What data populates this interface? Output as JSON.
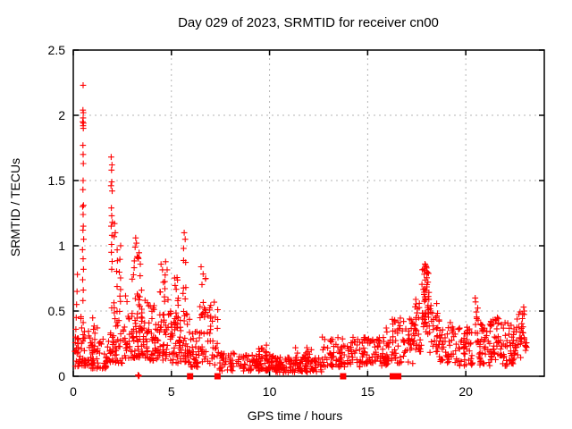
{
  "chart_data": {
    "type": "scatter",
    "title": "Day 029 of 2023, SRMTID for receiver cn00",
    "xlabel": "GPS time / hours",
    "ylabel": "SRMTID / TECUs",
    "xlim": [
      0,
      24
    ],
    "ylim": [
      0,
      2.5
    ],
    "xticks": [
      {
        "label": "0",
        "value": 0
      },
      {
        "label": "5",
        "value": 5
      },
      {
        "label": "10",
        "value": 10
      },
      {
        "label": "15",
        "value": 15
      },
      {
        "label": "20",
        "value": 20
      }
    ],
    "yticks": [
      {
        "label": "0",
        "value": 0
      },
      {
        "label": "0.5",
        "value": 0.5
      },
      {
        "label": "1",
        "value": 1
      },
      {
        "label": "1.5",
        "value": 1.5
      },
      {
        "label": "2",
        "value": 2
      },
      {
        "label": "2.5",
        "value": 2.5
      }
    ],
    "grid": true,
    "legend": "none",
    "marker_color": "#ff0000",
    "grid_color": "#b5b5b5",
    "axis_color": "#000000",
    "series": [
      {
        "name": "SRMTID",
        "marker": "plus",
        "color": "#ff0000",
        "prng_seed": 20230129,
        "peak_points": [
          [
            0.5,
            2.23
          ],
          [
            0.49,
            2.04
          ],
          [
            0.51,
            2.02
          ],
          [
            0.5,
            1.98
          ],
          [
            0.48,
            1.95
          ],
          [
            0.52,
            1.94
          ],
          [
            0.5,
            1.92
          ],
          [
            0.51,
            1.9
          ],
          [
            0.49,
            1.77
          ],
          [
            0.5,
            1.7
          ],
          [
            0.51,
            1.63
          ],
          [
            0.5,
            1.5
          ],
          [
            0.49,
            1.43
          ],
          [
            0.52,
            1.31
          ],
          [
            0.48,
            1.3
          ],
          [
            0.5,
            1.24
          ],
          [
            0.51,
            1.15
          ],
          [
            0.49,
            1.12
          ],
          [
            0.53,
            1.05
          ],
          [
            0.47,
            0.97
          ],
          [
            0.5,
            0.9
          ],
          [
            0.52,
            0.82
          ],
          [
            0.48,
            0.74
          ],
          [
            0.51,
            0.66
          ],
          [
            0.49,
            0.58
          ],
          [
            0.11,
            0.3
          ],
          [
            0.13,
            0.36
          ],
          [
            0.15,
            0.45
          ],
          [
            0.17,
            0.55
          ],
          [
            0.19,
            0.65
          ],
          [
            0.21,
            0.78
          ],
          [
            1.93,
            1.68
          ],
          [
            1.97,
            1.62
          ],
          [
            1.95,
            1.58
          ],
          [
            1.96,
            1.49
          ],
          [
            1.92,
            1.46
          ],
          [
            1.98,
            1.42
          ],
          [
            1.94,
            1.29
          ],
          [
            1.96,
            1.23
          ],
          [
            1.99,
            1.18
          ],
          [
            1.93,
            1.15
          ],
          [
            1.97,
            1.08
          ],
          [
            1.95,
            1.01
          ],
          [
            1.94,
            0.95
          ],
          [
            1.98,
            0.88
          ],
          [
            1.96,
            0.82
          ],
          [
            2.1,
            1.17
          ],
          [
            2.14,
            1.1
          ],
          [
            2.08,
            1.07
          ],
          [
            3.18,
            1.06
          ],
          [
            3.22,
            1.02
          ],
          [
            3.15,
            0.99
          ],
          [
            5.65,
            1.1
          ],
          [
            5.7,
            1.05
          ],
          [
            5.62,
            0.98
          ],
          [
            17.92,
            0.86
          ],
          [
            17.95,
            0.85
          ],
          [
            17.98,
            0.84
          ],
          [
            18.0,
            0.83
          ],
          [
            17.9,
            0.81
          ],
          [
            18.02,
            0.8
          ],
          [
            20.48,
            0.6
          ],
          [
            20.5,
            0.57
          ],
          [
            15.95,
            0.37
          ],
          [
            15.98,
            0.34
          ],
          [
            22.9,
            0.48
          ],
          [
            22.95,
            0.53
          ],
          [
            22.98,
            0.5
          ],
          [
            3.3,
            0.01
          ],
          [
            3.35,
            0.005
          ],
          [
            3.32,
            0.0
          ]
        ],
        "cluster_model": [
          {
            "x0": 0.05,
            "x1": 0.35,
            "n": 22,
            "y0": 0.07,
            "y1": 0.3,
            "skew": 1.3
          },
          {
            "x0": 0.35,
            "x1": 0.8,
            "n": 30,
            "y0": 0.08,
            "y1": 0.48,
            "skew": 1.6
          },
          {
            "x0": 0.8,
            "x1": 1.75,
            "n": 55,
            "y0": 0.06,
            "y1": 0.3,
            "skew": 1.7
          },
          {
            "x0": 0.95,
            "x1": 1.3,
            "n": 5,
            "y0": 0.32,
            "y1": 0.52,
            "skew": 1.0
          },
          {
            "x0": 1.75,
            "x1": 2.6,
            "n": 55,
            "y0": 0.1,
            "y1": 0.58,
            "skew": 1.6
          },
          {
            "x0": 2.2,
            "x1": 2.55,
            "n": 10,
            "y0": 0.6,
            "y1": 1.1,
            "skew": 1.1
          },
          {
            "x0": 2.6,
            "x1": 3.8,
            "n": 95,
            "y0": 0.14,
            "y1": 0.62,
            "skew": 1.5
          },
          {
            "x0": 3.0,
            "x1": 3.55,
            "n": 14,
            "y0": 0.6,
            "y1": 1.0,
            "skew": 1.1
          },
          {
            "x0": 3.8,
            "x1": 5.0,
            "n": 85,
            "y0": 0.12,
            "y1": 0.55,
            "skew": 1.5
          },
          {
            "x0": 4.3,
            "x1": 4.85,
            "n": 13,
            "y0": 0.55,
            "y1": 0.92,
            "skew": 1.1
          },
          {
            "x0": 5.0,
            "x1": 5.45,
            "n": 35,
            "y0": 0.1,
            "y1": 0.5,
            "skew": 1.4
          },
          {
            "x0": 5.1,
            "x1": 5.35,
            "n": 8,
            "y0": 0.5,
            "y1": 0.88,
            "skew": 1.0
          },
          {
            "x0": 5.45,
            "x1": 5.95,
            "n": 35,
            "y0": 0.1,
            "y1": 0.48,
            "skew": 1.4
          },
          {
            "x0": 5.58,
            "x1": 5.8,
            "n": 7,
            "y0": 0.48,
            "y1": 0.95,
            "skew": 1.0
          },
          {
            "x0": 5.95,
            "x1": 6.35,
            "n": 25,
            "y0": 0.07,
            "y1": 0.35,
            "skew": 1.4
          },
          {
            "x0": 6.35,
            "x1": 6.95,
            "n": 32,
            "y0": 0.1,
            "y1": 0.55,
            "skew": 1.3
          },
          {
            "x0": 6.45,
            "x1": 6.75,
            "n": 6,
            "y0": 0.55,
            "y1": 0.84,
            "skew": 1.0
          },
          {
            "x0": 6.95,
            "x1": 7.45,
            "n": 26,
            "y0": 0.08,
            "y1": 0.6,
            "skew": 1.3
          },
          {
            "x0": 7.45,
            "x1": 8.35,
            "n": 38,
            "y0": 0.04,
            "y1": 0.18,
            "skew": 1.2
          },
          {
            "x0": 8.35,
            "x1": 10.25,
            "n": 95,
            "y0": 0.04,
            "y1": 0.17,
            "skew": 1.2
          },
          {
            "x0": 9.45,
            "x1": 9.85,
            "n": 10,
            "y0": 0.15,
            "y1": 0.24,
            "skew": 1.0
          },
          {
            "x0": 10.25,
            "x1": 12.65,
            "n": 135,
            "y0": 0.03,
            "y1": 0.15,
            "skew": 1.2
          },
          {
            "x0": 11.3,
            "x1": 12.3,
            "n": 8,
            "y0": 0.15,
            "y1": 0.22,
            "skew": 1.0
          },
          {
            "x0": 12.65,
            "x1": 14.65,
            "n": 95,
            "y0": 0.07,
            "y1": 0.3,
            "skew": 1.3
          },
          {
            "x0": 14.65,
            "x1": 16.25,
            "n": 85,
            "y0": 0.08,
            "y1": 0.3,
            "skew": 1.3
          },
          {
            "x0": 16.25,
            "x1": 17.35,
            "n": 62,
            "y0": 0.09,
            "y1": 0.45,
            "skew": 1.3
          },
          {
            "x0": 17.35,
            "x1": 17.75,
            "n": 30,
            "y0": 0.18,
            "y1": 0.6,
            "skew": 1.2
          },
          {
            "x0": 17.75,
            "x1": 18.15,
            "n": 46,
            "y0": 0.32,
            "y1": 0.85,
            "skew": 0.9
          },
          {
            "x0": 18.15,
            "x1": 18.65,
            "n": 30,
            "y0": 0.18,
            "y1": 0.58,
            "skew": 1.2
          },
          {
            "x0": 18.65,
            "x1": 19.65,
            "n": 52,
            "y0": 0.1,
            "y1": 0.42,
            "skew": 1.3
          },
          {
            "x0": 19.65,
            "x1": 20.35,
            "n": 45,
            "y0": 0.08,
            "y1": 0.38,
            "skew": 1.3
          },
          {
            "x0": 20.35,
            "x1": 20.65,
            "n": 12,
            "y0": 0.25,
            "y1": 0.55,
            "skew": 1.0
          },
          {
            "x0": 20.65,
            "x1": 21.25,
            "n": 42,
            "y0": 0.08,
            "y1": 0.4,
            "skew": 1.3
          },
          {
            "x0": 21.25,
            "x1": 21.85,
            "n": 40,
            "y0": 0.1,
            "y1": 0.46,
            "skew": 1.2
          },
          {
            "x0": 21.85,
            "x1": 22.45,
            "n": 40,
            "y0": 0.08,
            "y1": 0.42,
            "skew": 1.2
          },
          {
            "x0": 22.45,
            "x1": 23.1,
            "n": 42,
            "y0": 0.12,
            "y1": 0.5,
            "skew": 1.0
          }
        ]
      },
      {
        "name": "axis-event-markers",
        "marker": "filled-square",
        "color": "#ff0000",
        "value": 0,
        "points_hours": [
          5.95,
          7.35,
          13.75,
          16.28,
          16.42,
          16.56
        ]
      }
    ]
  }
}
